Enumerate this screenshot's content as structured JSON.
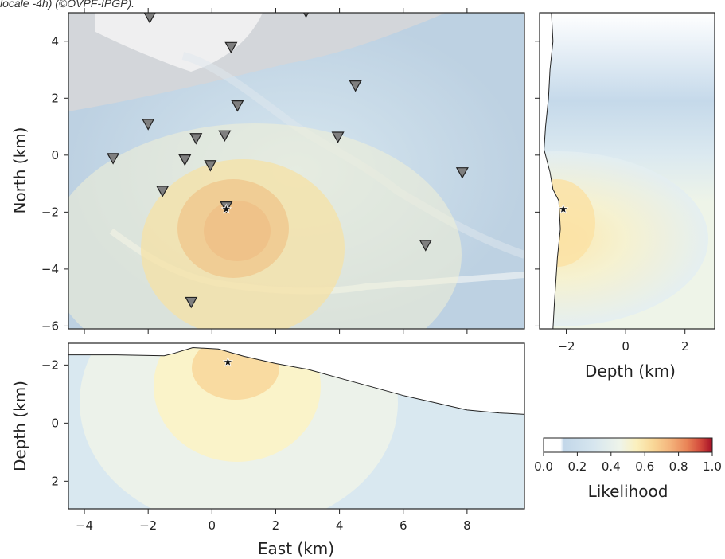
{
  "caption": "locale -4h) (©OVPF-IPGP).",
  "colors": {
    "gray_relief": "#d9d9d9",
    "blue_low": "#bcd3e6",
    "blue_mid": "#d6e6ef",
    "cream": "#f6f0c8",
    "yellow": "#f5e0a8",
    "orange": "#efc88f",
    "station_fill": "#7f7f7f",
    "colormap": [
      "#ffffff",
      "#c5d9ea",
      "#d2e3ee",
      "#e3eef2",
      "#f2f5e3",
      "#fbeeb9",
      "#fad79a",
      "#f5b880",
      "#ec8c60",
      "#d9553f",
      "#b3172a"
    ]
  },
  "chart_data": [
    {
      "id": "map",
      "type": "heatmap",
      "xlabel": "",
      "ylabel": "North (km)",
      "xlim": [
        -4.5,
        9.8
      ],
      "ylim": [
        -6.1,
        5.0
      ],
      "xticks": [
        -4,
        -2,
        0,
        2,
        4,
        6,
        8
      ],
      "yticks": [
        4,
        2,
        0,
        -2,
        -4,
        -6
      ],
      "ytick_labels": [
        "4",
        "2",
        "0",
        "−2",
        "−4",
        "−6"
      ],
      "show_xtick_labels": false,
      "likelihood_peak": {
        "x": 0.5,
        "y": -2.5
      },
      "event": {
        "x": 0.45,
        "y": -1.9
      },
      "stations": [
        {
          "x": -1.95,
          "y": 4.85
        },
        {
          "x": 2.95,
          "y": 5.05
        },
        {
          "x": 0.6,
          "y": 3.8
        },
        {
          "x": 4.5,
          "y": 2.45
        },
        {
          "x": 0.8,
          "y": 1.75
        },
        {
          "x": -2.0,
          "y": 1.1
        },
        {
          "x": -3.1,
          "y": -0.1
        },
        {
          "x": -0.5,
          "y": 0.6
        },
        {
          "x": 0.4,
          "y": 0.7
        },
        {
          "x": 3.95,
          "y": 0.65
        },
        {
          "x": -0.85,
          "y": -0.15
        },
        {
          "x": -0.05,
          "y": -0.35
        },
        {
          "x": 7.85,
          "y": -0.6
        },
        {
          "x": -1.55,
          "y": -1.25
        },
        {
          "x": 0.45,
          "y": -1.8
        },
        {
          "x": 6.7,
          "y": -3.15
        },
        {
          "x": -0.65,
          "y": -5.15
        }
      ]
    },
    {
      "id": "ns-section",
      "type": "heatmap",
      "xlabel": "Depth (km)",
      "ylabel": "",
      "xlim": [
        -2.9,
        3.0
      ],
      "ylim": [
        -6.1,
        5.0
      ],
      "xticks": [
        -2,
        0,
        2
      ],
      "xtick_labels": [
        "−2",
        "0",
        "2"
      ],
      "event": {
        "depth": -2.1,
        "north": -1.9
      },
      "topography": [
        [
          -2.5,
          5.0
        ],
        [
          -2.45,
          4.0
        ],
        [
          -2.55,
          3.0
        ],
        [
          -2.6,
          2.0
        ],
        [
          -2.7,
          1.0
        ],
        [
          -2.75,
          0.2
        ],
        [
          -2.55,
          -0.6
        ],
        [
          -2.45,
          -1.2
        ],
        [
          -2.25,
          -1.6
        ],
        [
          -2.2,
          -2.6
        ],
        [
          -2.3,
          -3.6
        ],
        [
          -2.35,
          -4.4
        ],
        [
          -2.4,
          -5.2
        ],
        [
          -2.45,
          -6.1
        ]
      ]
    },
    {
      "id": "ew-section",
      "type": "heatmap",
      "xlabel": "East (km)",
      "ylabel": "Depth (km)",
      "xlim": [
        -4.5,
        9.8
      ],
      "ylim": [
        -2.75,
        2.95
      ],
      "xticks": [
        -4,
        -2,
        0,
        2,
        4,
        6,
        8
      ],
      "xtick_labels": [
        "−4",
        "−2",
        "0",
        "2",
        "4",
        "6",
        "8"
      ],
      "yticks": [
        -2,
        0,
        2
      ],
      "ytick_labels": [
        "−2",
        "0",
        "2"
      ],
      "event": {
        "east": 0.5,
        "depth": -2.1
      },
      "topography": [
        [
          -4.5,
          -2.35
        ],
        [
          -3.0,
          -2.35
        ],
        [
          -1.5,
          -2.32
        ],
        [
          -1.2,
          -2.4
        ],
        [
          -0.6,
          -2.6
        ],
        [
          0.2,
          -2.55
        ],
        [
          1.0,
          -2.3
        ],
        [
          2.0,
          -2.05
        ],
        [
          3.0,
          -1.85
        ],
        [
          4.0,
          -1.55
        ],
        [
          5.0,
          -1.25
        ],
        [
          6.0,
          -0.95
        ],
        [
          7.0,
          -0.7
        ],
        [
          8.0,
          -0.45
        ],
        [
          9.0,
          -0.35
        ],
        [
          9.8,
          -0.3
        ]
      ]
    },
    {
      "id": "colorbar",
      "type": "heatmap",
      "xlabel": "Likelihood",
      "range": [
        0.0,
        1.0
      ],
      "ticks": [
        0.0,
        0.2,
        0.4,
        0.6,
        0.8,
        1.0
      ],
      "tick_labels": [
        "0.0",
        "0.2",
        "0.4",
        "0.6",
        "0.8",
        "1.0"
      ]
    }
  ]
}
